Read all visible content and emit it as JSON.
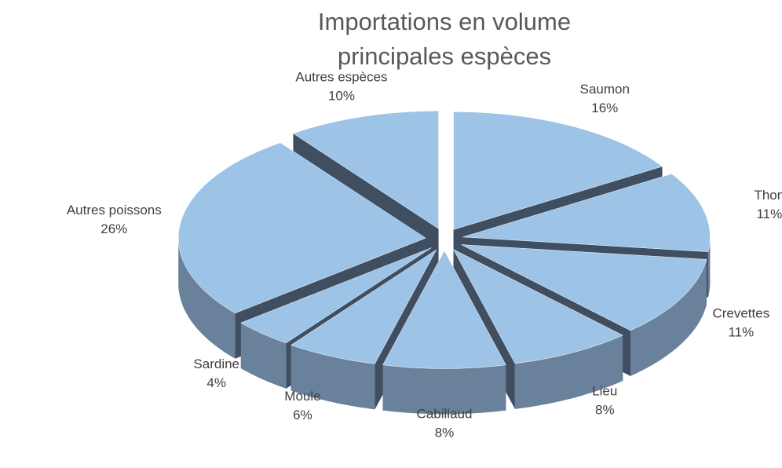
{
  "chart_data": {
    "type": "pie3d",
    "title": [
      "Importations en volume",
      "principales espèces"
    ],
    "categories": [
      "Saumon",
      "Thon",
      "Crevettes",
      "Lieu",
      "Cabillaud",
      "Moule",
      "Sardine",
      "Autres poissons",
      "Autres espèces"
    ],
    "values": [
      16,
      11,
      11,
      8,
      8,
      6,
      4,
      26,
      10
    ],
    "value_labels": [
      "16%",
      "11%",
      "11%",
      "8%",
      "8%",
      "6%",
      "4%",
      "26%",
      "10%"
    ],
    "color": "#9dc3e6"
  }
}
